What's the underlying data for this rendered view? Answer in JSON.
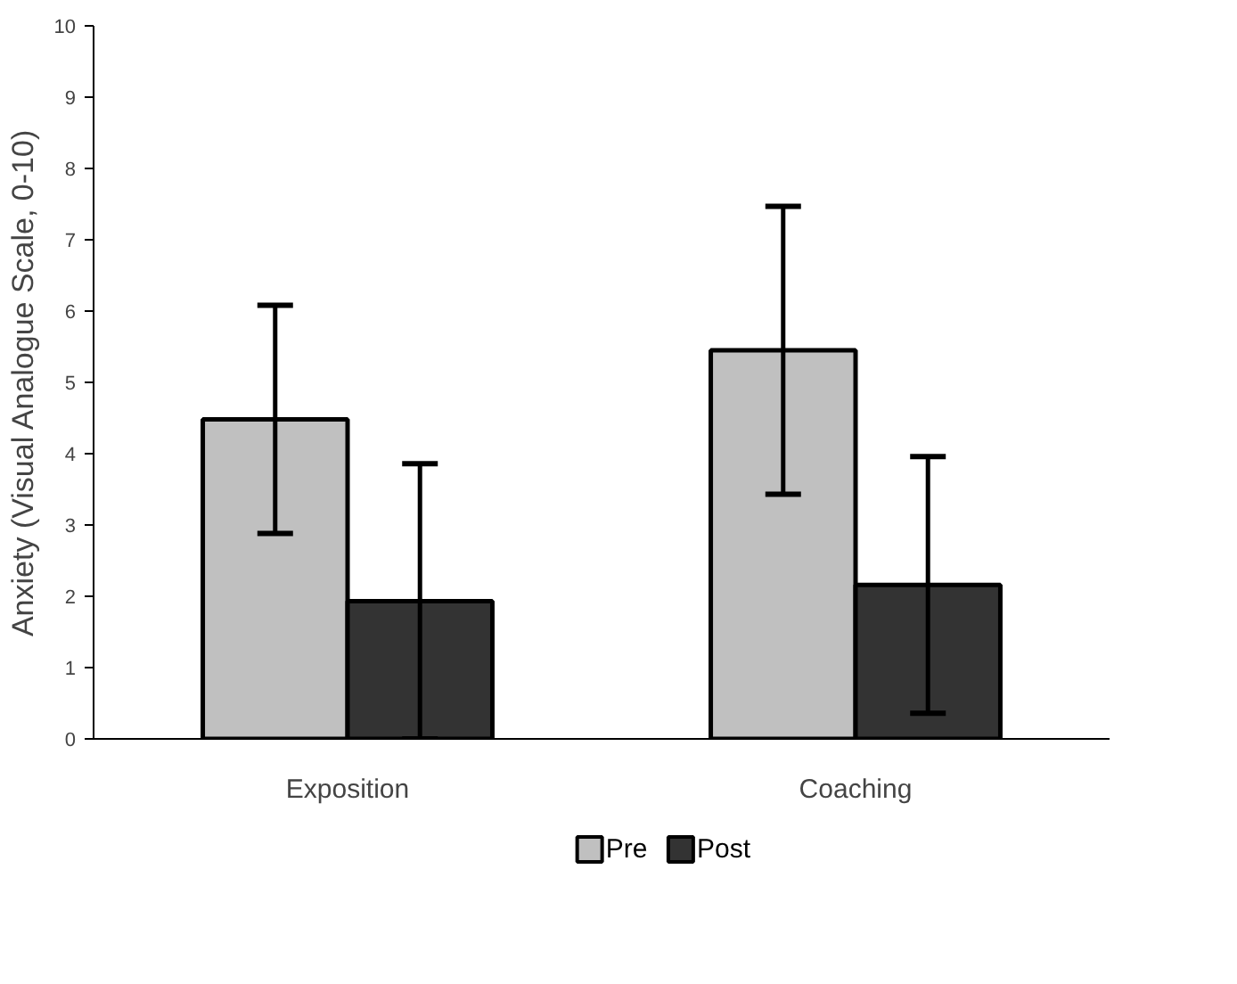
{
  "chart_data": {
    "type": "bar",
    "ylabel": "Anxiety (Visual Analogue Scale, 0-10)",
    "categories": [
      "Exposition",
      "Coaching"
    ],
    "series": [
      {
        "name": "Pre",
        "color": "#c0c0c0",
        "values": [
          4.48,
          5.45
        ],
        "errors": [
          1.6,
          2.02
        ]
      },
      {
        "name": "Post",
        "color": "#333333",
        "values": [
          1.93,
          2.16
        ],
        "errors": [
          1.93,
          1.8
        ]
      }
    ],
    "ylim": [
      0,
      10
    ],
    "yticks": [
      0,
      1,
      2,
      3,
      4,
      5,
      6,
      7,
      8,
      9,
      10
    ],
    "grid": false,
    "legend": "bottom"
  }
}
